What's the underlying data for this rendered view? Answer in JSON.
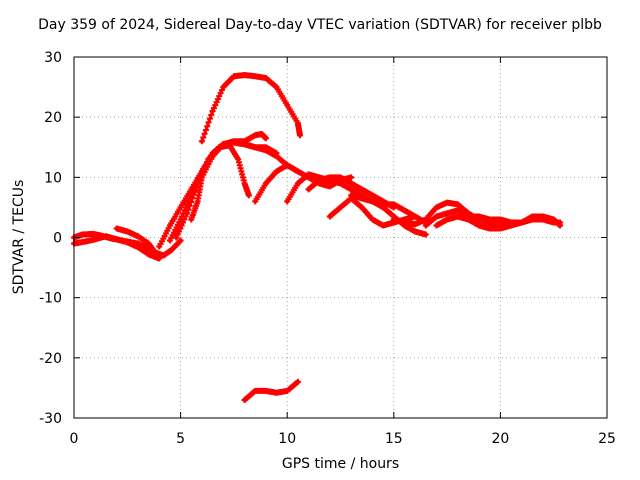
{
  "chart_data": {
    "type": "scatter",
    "title": "Day 359 of 2024, Sidereal Day-to-day VTEC variation (SDTVAR) for receiver plbb",
    "xlabel": "GPS time / hours",
    "ylabel": "SDTVAR / TECUs",
    "xlim": [
      0,
      25
    ],
    "ylim": [
      -30,
      30
    ],
    "xticks": [
      0,
      5,
      10,
      15,
      20,
      25
    ],
    "yticks": [
      -30,
      -20,
      -10,
      0,
      10,
      20,
      30
    ],
    "grid": true,
    "marker": "plus",
    "color": "#ff0000",
    "series": [
      {
        "name": "track-1",
        "points": [
          [
            0,
            -1
          ],
          [
            0.5,
            -0.7
          ],
          [
            1,
            -0.3
          ],
          [
            1.5,
            0.2
          ],
          [
            2,
            -0.3
          ],
          [
            2.5,
            -0.8
          ],
          [
            3,
            -1.6
          ],
          [
            3.5,
            -2.8
          ],
          [
            4,
            -3.5
          ]
        ]
      },
      {
        "name": "track-2",
        "points": [
          [
            0,
            0
          ],
          [
            0.4,
            0.5
          ],
          [
            0.9,
            0.6
          ],
          [
            1.3,
            0.3
          ],
          [
            1.8,
            -0.2
          ],
          [
            2.4,
            -0.6
          ],
          [
            3,
            -1
          ],
          [
            3.5,
            -1.8
          ],
          [
            4,
            -3
          ]
        ]
      },
      {
        "name": "track-3",
        "points": [
          [
            2,
            1.5
          ],
          [
            2.5,
            1
          ],
          [
            3,
            0.2
          ],
          [
            3.5,
            -1
          ],
          [
            3.8,
            -2.5
          ],
          [
            4.2,
            -3
          ],
          [
            4.6,
            -2
          ],
          [
            5,
            -0.5
          ]
        ]
      },
      {
        "name": "track-4",
        "points": [
          [
            4,
            -1.5
          ],
          [
            4.5,
            2
          ],
          [
            5,
            5
          ],
          [
            5.5,
            8
          ],
          [
            6,
            11
          ],
          [
            6.5,
            14
          ],
          [
            7,
            15.5
          ],
          [
            7.5,
            15.8
          ],
          [
            8,
            15.5
          ],
          [
            8.5,
            15
          ],
          [
            9,
            14.5
          ],
          [
            9.5,
            13.5
          ],
          [
            10,
            12
          ],
          [
            10.5,
            11
          ]
        ]
      },
      {
        "name": "track-5",
        "points": [
          [
            4.5,
            -0.5
          ],
          [
            5,
            3
          ],
          [
            5.5,
            7
          ],
          [
            6,
            11
          ],
          [
            6.5,
            14
          ],
          [
            7,
            15.5
          ],
          [
            7.5,
            16
          ],
          [
            8,
            16
          ],
          [
            8.5,
            17
          ],
          [
            8.8,
            17.2
          ],
          [
            9,
            16.5
          ]
        ]
      },
      {
        "name": "track-6",
        "points": [
          [
            4.8,
            0
          ],
          [
            5.3,
            4
          ],
          [
            5.8,
            9
          ],
          [
            6.3,
            13
          ],
          [
            6.8,
            15
          ],
          [
            7.3,
            15.3
          ],
          [
            7.7,
            13
          ],
          [
            8,
            9
          ],
          [
            8.2,
            7
          ]
        ]
      },
      {
        "name": "track-7",
        "points": [
          [
            5.5,
            3
          ],
          [
            5.8,
            6
          ],
          [
            6,
            10
          ],
          [
            6.5,
            13.5
          ],
          [
            7,
            15.5
          ],
          [
            7.5,
            15.8
          ],
          [
            8,
            15.5
          ],
          [
            8.5,
            15
          ],
          [
            9,
            15
          ],
          [
            9.5,
            14
          ]
        ]
      },
      {
        "name": "track-8",
        "points": [
          [
            6,
            16
          ],
          [
            6.5,
            21
          ],
          [
            7,
            25
          ],
          [
            7.5,
            26.8
          ],
          [
            8,
            27
          ],
          [
            8.5,
            26.8
          ],
          [
            9,
            26.5
          ],
          [
            9.5,
            25
          ],
          [
            10,
            22
          ],
          [
            10.5,
            19
          ],
          [
            10.6,
            17
          ]
        ]
      },
      {
        "name": "track-9",
        "points": [
          [
            8.5,
            6
          ],
          [
            9,
            9
          ],
          [
            9.5,
            11
          ],
          [
            10,
            12
          ],
          [
            10.5,
            11
          ],
          [
            11,
            10
          ],
          [
            11.5,
            9
          ],
          [
            12,
            8.5
          ],
          [
            12.5,
            9.5
          ],
          [
            13,
            10
          ]
        ]
      },
      {
        "name": "track-10",
        "points": [
          [
            10,
            6
          ],
          [
            10.5,
            9
          ],
          [
            11,
            10.5
          ],
          [
            11.5,
            10
          ],
          [
            12,
            9.5
          ],
          [
            12.5,
            9
          ],
          [
            13,
            8
          ],
          [
            13.5,
            7
          ],
          [
            14,
            6
          ],
          [
            14.5,
            5.5
          ],
          [
            15,
            5.5
          ],
          [
            15.5,
            4.5
          ],
          [
            16,
            3.5
          ],
          [
            16.5,
            2.5
          ]
        ]
      },
      {
        "name": "track-11",
        "points": [
          [
            11,
            8
          ],
          [
            11.5,
            9.5
          ],
          [
            12,
            10
          ],
          [
            12.5,
            10
          ],
          [
            13,
            9
          ],
          [
            13.5,
            8
          ],
          [
            14,
            7
          ],
          [
            14.5,
            6
          ],
          [
            15,
            5
          ]
        ]
      },
      {
        "name": "track-12",
        "points": [
          [
            12,
            3.5
          ],
          [
            12.5,
            5
          ],
          [
            13,
            6.5
          ],
          [
            13.5,
            5
          ],
          [
            14,
            3
          ],
          [
            14.5,
            2
          ],
          [
            15,
            2.5
          ],
          [
            15.5,
            3
          ],
          [
            16,
            3.5
          ]
        ]
      },
      {
        "name": "track-13",
        "points": [
          [
            13,
            7
          ],
          [
            13.5,
            6.5
          ],
          [
            14,
            6
          ],
          [
            14.5,
            5
          ],
          [
            15,
            3.5
          ],
          [
            15.5,
            2
          ],
          [
            16,
            1
          ],
          [
            16.5,
            0.5
          ]
        ]
      },
      {
        "name": "track-14",
        "points": [
          [
            15,
            3
          ],
          [
            15.5,
            2.5
          ],
          [
            16,
            2.2
          ],
          [
            16.5,
            3
          ],
          [
            17,
            5
          ],
          [
            17.5,
            5.8
          ],
          [
            18,
            5.5
          ],
          [
            18.5,
            4
          ],
          [
            19,
            3
          ],
          [
            19.5,
            2.5
          ],
          [
            20,
            2.5
          ],
          [
            20.5,
            2.5
          ],
          [
            21,
            2.5
          ],
          [
            21.5,
            3
          ],
          [
            22,
            3
          ],
          [
            22.5,
            2.5
          ],
          [
            22.8,
            2.5
          ]
        ]
      },
      {
        "name": "track-15",
        "points": [
          [
            17,
            2
          ],
          [
            17.5,
            3
          ],
          [
            18,
            3.5
          ],
          [
            18.5,
            3
          ],
          [
            19,
            2
          ],
          [
            19.5,
            1.5
          ],
          [
            20,
            1.5
          ],
          [
            20.5,
            2
          ],
          [
            21,
            2.5
          ],
          [
            21.5,
            3.5
          ],
          [
            22,
            3.5
          ],
          [
            22.5,
            3
          ],
          [
            22.8,
            2
          ]
        ]
      },
      {
        "name": "track-16",
        "points": [
          [
            16.5,
            2
          ],
          [
            17,
            3.5
          ],
          [
            17.5,
            4
          ],
          [
            18,
            4.5
          ],
          [
            18.5,
            3.5
          ],
          [
            19,
            3.5
          ],
          [
            19.5,
            3
          ],
          [
            20,
            3
          ],
          [
            20.5,
            2.5
          ]
        ]
      },
      {
        "name": "track-17",
        "points": [
          [
            8,
            -27
          ],
          [
            8.5,
            -25.5
          ],
          [
            9,
            -25.5
          ],
          [
            9.5,
            -25.8
          ],
          [
            10,
            -25.5
          ],
          [
            10.5,
            -24
          ]
        ]
      }
    ]
  }
}
